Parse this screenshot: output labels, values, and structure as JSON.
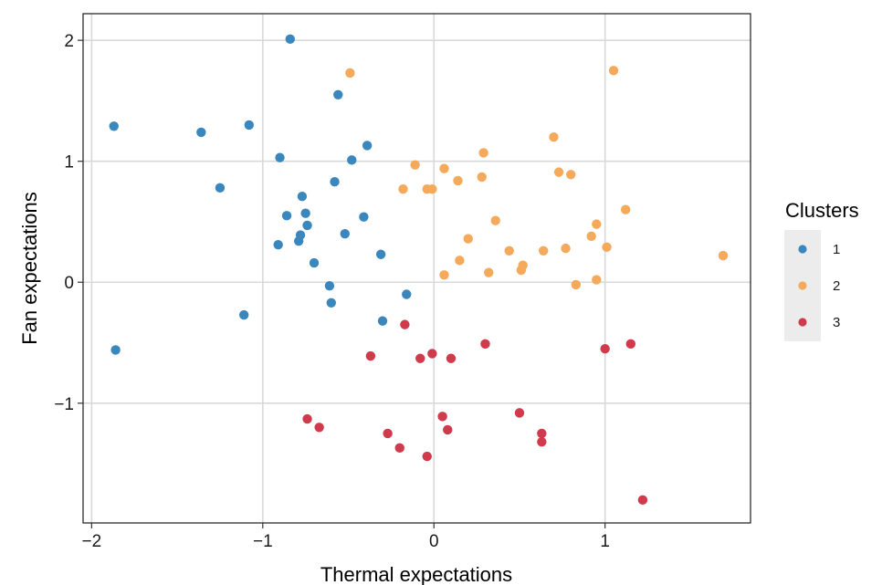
{
  "chart_data": {
    "type": "scatter",
    "title": "",
    "xlabel": "Thermal expectations",
    "ylabel": "Fan expectations",
    "xlim": [
      -2.05,
      1.85
    ],
    "ylim": [
      -1.99,
      2.22
    ],
    "xticks": [
      -2,
      -1,
      0,
      1
    ],
    "yticks": [
      -1,
      0,
      1,
      2
    ],
    "grid": true,
    "legend": {
      "title": "Clusters",
      "position": "right"
    },
    "series": [
      {
        "name": "1",
        "color": "#3a87bd",
        "points": [
          [
            -0.84,
            2.01
          ],
          [
            -0.56,
            1.55
          ],
          [
            -1.87,
            1.29
          ],
          [
            -1.08,
            1.3
          ],
          [
            -1.36,
            1.24
          ],
          [
            -0.39,
            1.13
          ],
          [
            -0.9,
            1.03
          ],
          [
            -0.48,
            1.01
          ],
          [
            -0.58,
            0.83
          ],
          [
            -1.25,
            0.78
          ],
          [
            -0.77,
            0.71
          ],
          [
            -0.75,
            0.57
          ],
          [
            -0.86,
            0.55
          ],
          [
            -0.41,
            0.54
          ],
          [
            -0.74,
            0.47
          ],
          [
            -0.52,
            0.4
          ],
          [
            -0.78,
            0.39
          ],
          [
            -0.79,
            0.34
          ],
          [
            -0.91,
            0.31
          ],
          [
            -0.31,
            0.23
          ],
          [
            -0.7,
            0.16
          ],
          [
            -0.61,
            -0.03
          ],
          [
            -0.6,
            -0.17
          ],
          [
            -0.16,
            -0.1
          ],
          [
            -1.11,
            -0.27
          ],
          [
            -0.3,
            -0.32
          ],
          [
            -1.86,
            -0.56
          ]
        ]
      },
      {
        "name": "2",
        "color": "#f5a95a",
        "points": [
          [
            -0.49,
            1.73
          ],
          [
            1.05,
            1.75
          ],
          [
            0.7,
            1.2
          ],
          [
            0.29,
            1.07
          ],
          [
            -0.11,
            0.97
          ],
          [
            0.06,
            0.94
          ],
          [
            0.73,
            0.91
          ],
          [
            0.8,
            0.89
          ],
          [
            0.28,
            0.87
          ],
          [
            0.14,
            0.84
          ],
          [
            -0.18,
            0.77
          ],
          [
            -0.04,
            0.77
          ],
          [
            -0.01,
            0.77
          ],
          [
            1.12,
            0.6
          ],
          [
            0.36,
            0.51
          ],
          [
            0.95,
            0.48
          ],
          [
            0.92,
            0.38
          ],
          [
            0.2,
            0.36
          ],
          [
            1.01,
            0.29
          ],
          [
            0.77,
            0.28
          ],
          [
            0.44,
            0.26
          ],
          [
            0.64,
            0.26
          ],
          [
            1.69,
            0.22
          ],
          [
            0.15,
            0.18
          ],
          [
            0.52,
            0.14
          ],
          [
            0.51,
            0.1
          ],
          [
            0.32,
            0.08
          ],
          [
            0.06,
            0.06
          ],
          [
            0.95,
            0.02
          ],
          [
            0.83,
            -0.02
          ]
        ]
      },
      {
        "name": "3",
        "color": "#d13a4c",
        "points": [
          [
            -0.17,
            -0.35
          ],
          [
            0.3,
            -0.51
          ],
          [
            1.15,
            -0.51
          ],
          [
            1.0,
            -0.55
          ],
          [
            -0.01,
            -0.59
          ],
          [
            -0.37,
            -0.61
          ],
          [
            -0.08,
            -0.63
          ],
          [
            0.1,
            -0.63
          ],
          [
            0.5,
            -1.08
          ],
          [
            0.05,
            -1.11
          ],
          [
            -0.74,
            -1.13
          ],
          [
            -0.67,
            -1.2
          ],
          [
            0.08,
            -1.22
          ],
          [
            0.63,
            -1.25
          ],
          [
            -0.27,
            -1.25
          ],
          [
            0.63,
            -1.32
          ],
          [
            -0.2,
            -1.37
          ],
          [
            -0.04,
            -1.44
          ],
          [
            1.22,
            -1.8
          ]
        ]
      }
    ]
  }
}
